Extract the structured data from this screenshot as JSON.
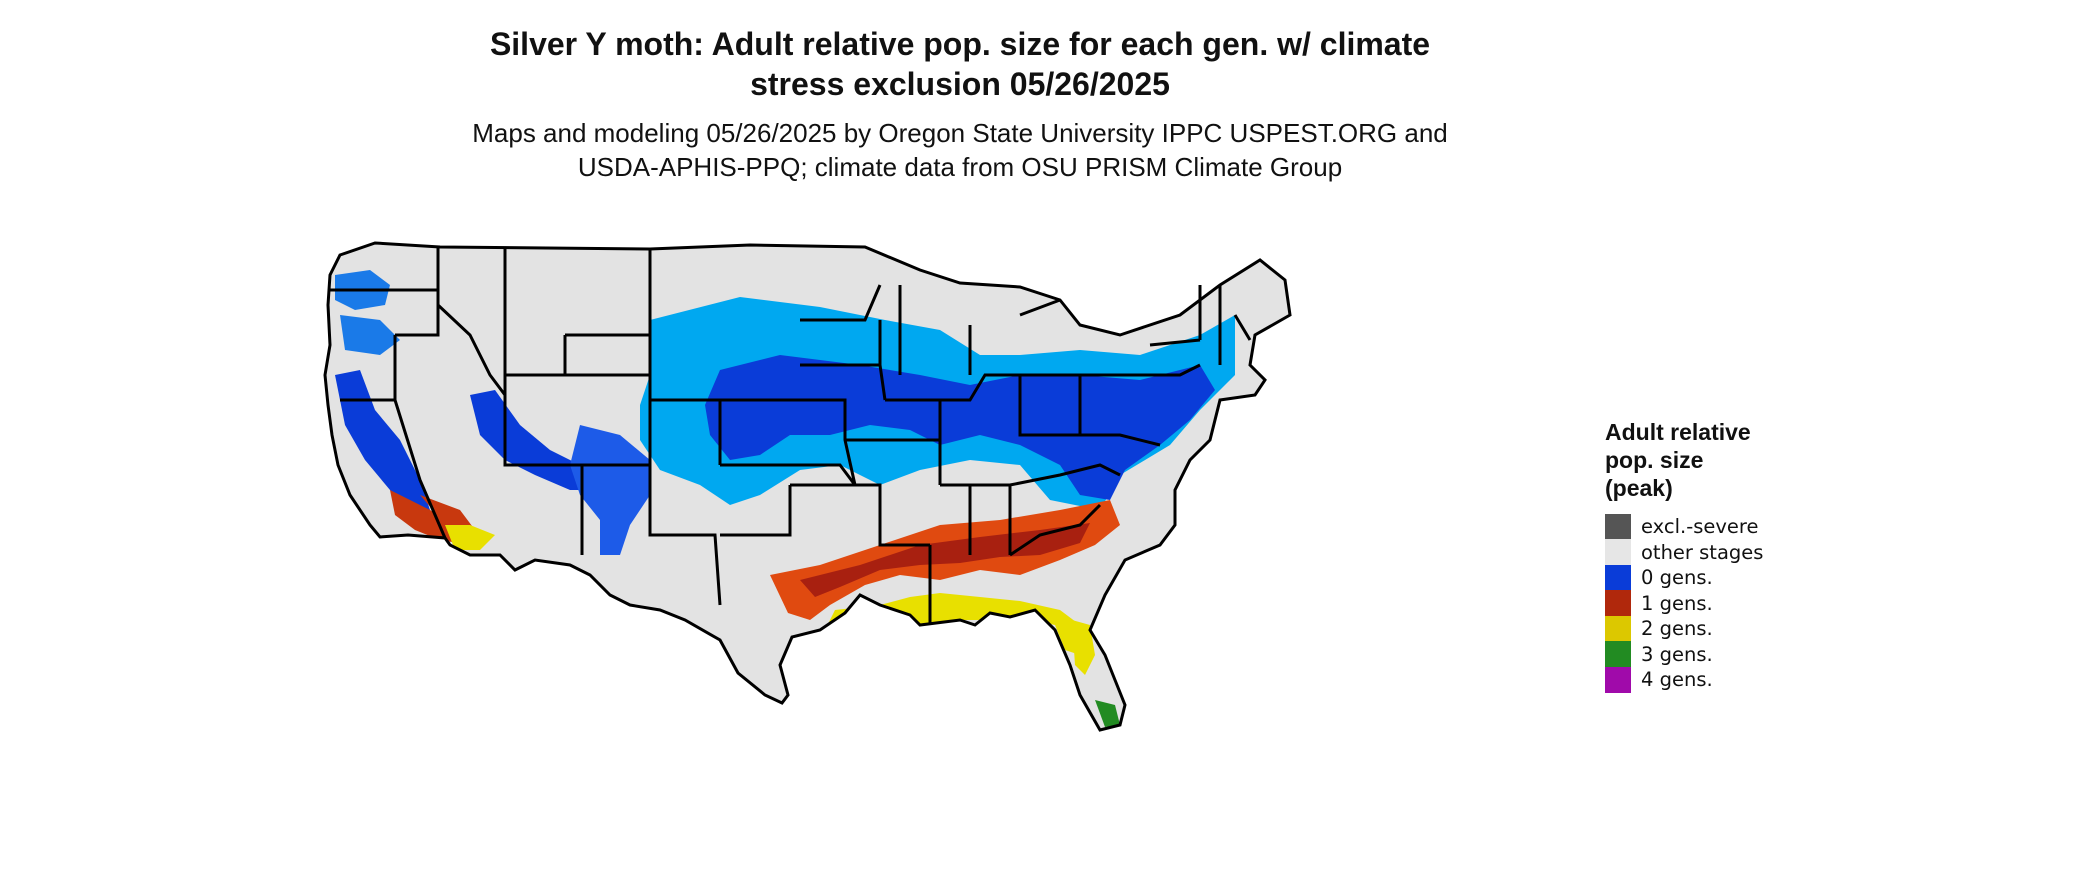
{
  "title_line1": "Silver Y moth: Adult relative pop. size for each gen. w/ climate",
  "title_line2": "stress exclusion 05/26/2025",
  "subtitle_line1": "Maps and modeling 05/26/2025 by Oregon State University IPPC USPEST.ORG and",
  "subtitle_line2": "USDA-APHIS-PPQ; climate data from OSU PRISM Climate Group",
  "legend": {
    "title_line1": "Adult relative",
    "title_line2": "pop. size",
    "title_line3": "(peak)",
    "items": [
      {
        "label": "excl.-severe",
        "color": "#555555"
      },
      {
        "label": "other stages",
        "color": "#e6e6e6"
      },
      {
        "label": "0 gens.",
        "color": "#0a3cd8"
      },
      {
        "label": "1 gens.",
        "color": "#b0280c"
      },
      {
        "label": "2 gens.",
        "color": "#dcc800"
      },
      {
        "label": "3 gens.",
        "color": "#228b22"
      },
      {
        "label": "4 gens.",
        "color": "#a00aaa"
      }
    ]
  },
  "colors": {
    "land": "#e3e3e3",
    "border": "#000000",
    "light_blue": "#00a8f0",
    "blue": "#0a3cd8",
    "orange": "#e04a10",
    "dark_red": "#a82010",
    "yellow": "#e8e000",
    "green": "#228b22"
  }
}
